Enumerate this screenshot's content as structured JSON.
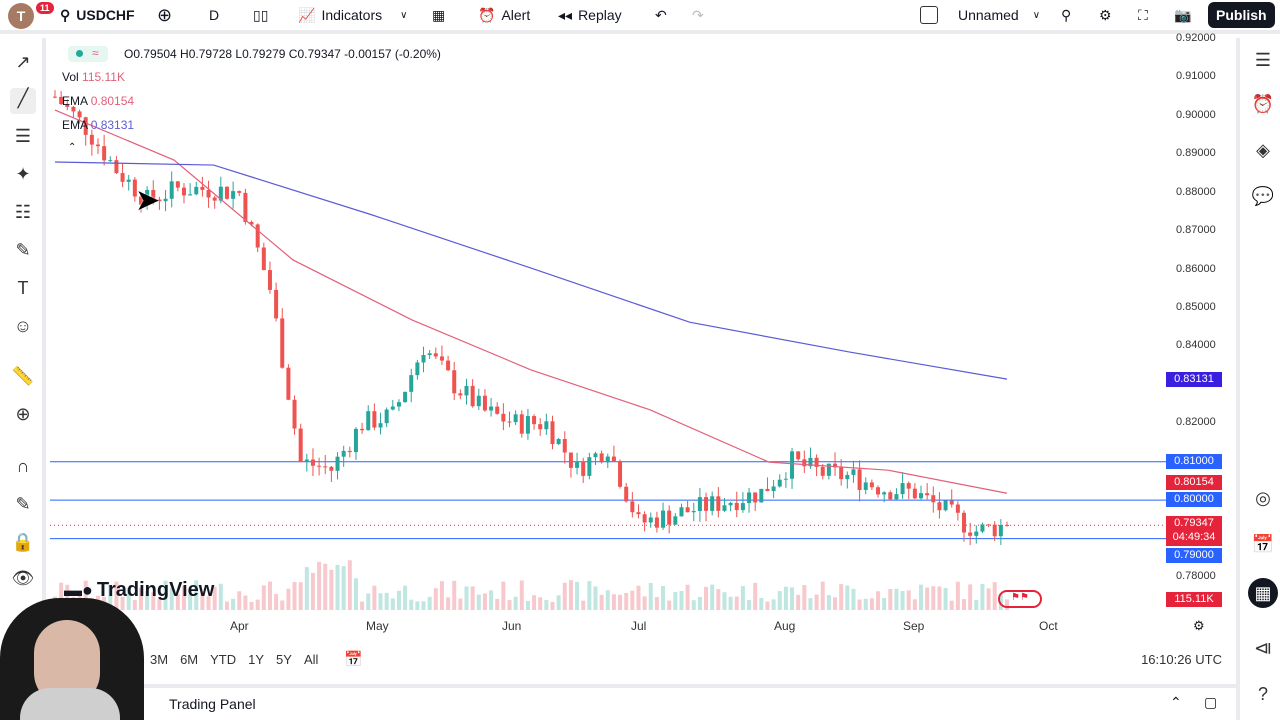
{
  "header": {
    "notifications": "11",
    "avatar_letter": "T",
    "symbol": "USDCHF",
    "interval": "D",
    "indicators": "Indicators",
    "alert": "Alert",
    "replay": "Replay",
    "layout_name": "Unnamed",
    "publish": "Publish"
  },
  "legend": {
    "ohlc": "O0.79504 H0.79728 L0.79279 C0.79347 -0.00157 (-0.20%)",
    "vol_label": "Vol",
    "vol_value": "115.11K",
    "ema1_label": "EMA",
    "ema1_value": "0.80154",
    "ema2_label": "EMA",
    "ema2_value": "0.83131"
  },
  "logo": "TradingView",
  "price_labels": {
    "ema200": "0.83131",
    "l081": "0.81000",
    "ema50": "0.80154",
    "l080": "0.80000",
    "last": "0.79347",
    "countdown": "04:49:34",
    "l079": "0.79000",
    "vol": "115.11K"
  },
  "bottom": {
    "ranges": [
      "3M",
      "6M",
      "YTD",
      "1Y",
      "5Y",
      "All"
    ],
    "time": "16:10:26 UTC"
  },
  "trading_panel": "Trading Panel",
  "colors": {
    "up": "#26a69a",
    "down": "#ef5350",
    "ema50": "#e2607a",
    "ema200": "#5b5bd6",
    "hline": "#2962ff"
  },
  "chart_data": {
    "type": "candlestick",
    "symbol": "USDCHF",
    "interval": "D",
    "yticks": [
      "0.92000",
      "0.91000",
      "0.90000",
      "0.89000",
      "0.88000",
      "0.87000",
      "0.86000",
      "0.85000",
      "0.84000",
      "0.82000",
      "0.78000"
    ],
    "ytick_values": [
      0.92,
      0.91,
      0.9,
      0.89,
      0.88,
      0.87,
      0.86,
      0.85,
      0.84,
      0.82,
      0.78
    ],
    "ylim": [
      0.78,
      0.92
    ],
    "xticks": [
      "Apr",
      "May",
      "Jun",
      "Jul",
      "Aug",
      "Sep",
      "Oct"
    ],
    "weekly_closes": [
      0.905,
      0.897,
      0.886,
      0.878,
      0.881,
      0.881,
      0.88,
      0.855,
      0.81,
      0.808,
      0.82,
      0.822,
      0.84,
      0.83,
      0.823,
      0.82,
      0.82,
      0.808,
      0.814,
      0.794,
      0.796,
      0.798,
      0.8,
      0.802,
      0.81,
      0.807,
      0.806,
      0.803,
      0.802,
      0.797,
      0.792,
      0.7935
    ],
    "ema50": [
      0.9015,
      0.8885,
      0.8625,
      0.8469,
      0.8339,
      0.8235,
      0.8099,
      0.8078,
      0.8018
    ],
    "ema200": [
      0.888,
      0.8872,
      0.8742,
      0.8604,
      0.8463,
      0.8386,
      0.8315
    ],
    "horizontal_lines": [
      0.81,
      0.8,
      0.79
    ],
    "last_price": 0.79347
  }
}
